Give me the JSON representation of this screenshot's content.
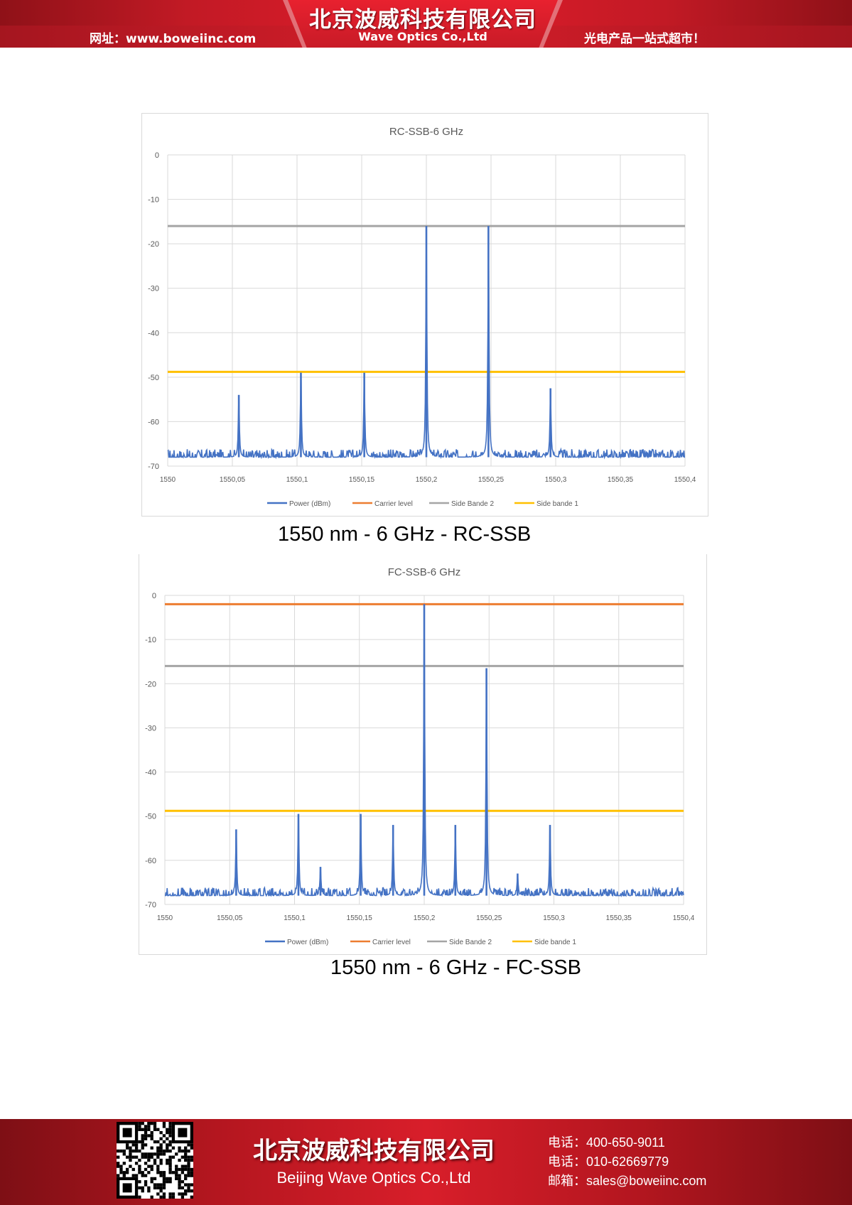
{
  "header": {
    "company_cn": "北京波威科技有限公司",
    "company_en": "Wave Optics Co.,Ltd",
    "website": "网址：www.boweiinc.com",
    "slogan": "光电产品一站式超市！"
  },
  "chart_data": [
    {
      "type": "line",
      "title": "RC-SSB-6 GHz",
      "caption": "1550 nm - 6 GHz - RC-SSB",
      "xlim": [
        1550,
        1550.4
      ],
      "ylim": [
        -70,
        0
      ],
      "x_ticks": [
        "1550",
        "1550,05",
        "1550,1",
        "1550,15",
        "1550,2",
        "1550,25",
        "1550,3",
        "1550,35",
        "1550,4"
      ],
      "y_ticks": [
        "0",
        "-10",
        "-20",
        "-30",
        "-40",
        "-50",
        "-60",
        "-70"
      ],
      "grid": true,
      "legend_position": "bottom",
      "noise_floor": -68,
      "series": [
        {
          "name": "Power (dBm)",
          "color": "#4472c4",
          "peaks": [
            {
              "x": 1550.055,
              "y": -54
            },
            {
              "x": 1550.103,
              "y": -49
            },
            {
              "x": 1550.152,
              "y": -49
            },
            {
              "x": 1550.2,
              "y": -16
            },
            {
              "x": 1550.248,
              "y": -16
            },
            {
              "x": 1550.296,
              "y": -52.5
            }
          ]
        },
        {
          "name": "Carrier level",
          "color": "#ed7d31",
          "y": null
        },
        {
          "name": "Side Bande 2",
          "color": "#a5a5a5",
          "y": -16
        },
        {
          "name": "Side bande 1",
          "color": "#ffc000",
          "y": -48.8
        }
      ]
    },
    {
      "type": "line",
      "title": "FC-SSB-6 GHz",
      "caption": "1550 nm - 6 GHz - FC-SSB",
      "xlim": [
        1550,
        1550.4
      ],
      "ylim": [
        -70,
        0
      ],
      "x_ticks": [
        "1550",
        "1550,05",
        "1550,1",
        "1550,15",
        "1550,2",
        "1550,25",
        "1550,3",
        "1550,35",
        "1550,4"
      ],
      "y_ticks": [
        "0",
        "-10",
        "-20",
        "-30",
        "-40",
        "-50",
        "-60",
        "-70"
      ],
      "grid": true,
      "legend_position": "bottom",
      "noise_floor": -68,
      "series": [
        {
          "name": "Power (dBm)",
          "color": "#4472c4",
          "peaks": [
            {
              "x": 1550.055,
              "y": -53
            },
            {
              "x": 1550.103,
              "y": -49.5
            },
            {
              "x": 1550.12,
              "y": -61.5
            },
            {
              "x": 1550.151,
              "y": -49.5
            },
            {
              "x": 1550.176,
              "y": -52
            },
            {
              "x": 1550.2,
              "y": -2
            },
            {
              "x": 1550.224,
              "y": -52
            },
            {
              "x": 1550.248,
              "y": -16.5
            },
            {
              "x": 1550.272,
              "y": -63
            },
            {
              "x": 1550.297,
              "y": -52
            }
          ]
        },
        {
          "name": "Carrier level",
          "color": "#ed7d31",
          "y": -2
        },
        {
          "name": "Side Bande 2",
          "color": "#a5a5a5",
          "y": -16
        },
        {
          "name": "Side bande 1",
          "color": "#ffc000",
          "y": -48.8
        }
      ]
    }
  ],
  "footer": {
    "company_cn": "北京波威科技有限公司",
    "company_en": "Beijing Wave Optics Co.,Ltd",
    "phone1": "电话：400-650-9011",
    "phone2": "电话：010-62669779",
    "email": "邮箱：sales@boweiinc.com"
  }
}
